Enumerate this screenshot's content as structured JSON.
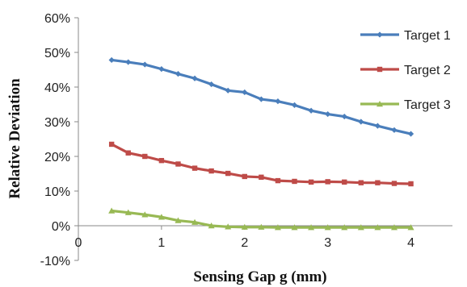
{
  "chart_data": {
    "type": "line",
    "title": "",
    "xlabel": "Sensing Gap g (mm)",
    "ylabel": "Relative Deviation",
    "xlim": [
      0,
      4.5
    ],
    "ylim": [
      -10,
      60
    ],
    "x_ticks": [
      0,
      1,
      2,
      3,
      4
    ],
    "x_tick_labels": [
      "0",
      "1",
      "2",
      "3",
      "4"
    ],
    "y_ticks": [
      -10,
      0,
      10,
      20,
      30,
      40,
      50,
      60
    ],
    "y_tick_labels": [
      "-10%",
      "0%",
      "10%",
      "20%",
      "30%",
      "40%",
      "50%",
      "60%"
    ],
    "grid": false,
    "legend_position": "right",
    "x": [
      0.4,
      0.6,
      0.8,
      1.0,
      1.2,
      1.4,
      1.6,
      1.8,
      2.0,
      2.2,
      2.4,
      2.6,
      2.8,
      3.0,
      3.2,
      3.4,
      3.6,
      3.8,
      4.0
    ],
    "series": [
      {
        "name": "Target 1",
        "color": "#4a7ebb",
        "marker": "diamond",
        "values": [
          47.8,
          47.2,
          46.5,
          45.2,
          43.8,
          42.5,
          40.8,
          39.0,
          38.5,
          36.5,
          35.9,
          34.8,
          33.2,
          32.2,
          31.5,
          30.0,
          28.8,
          27.6,
          26.5
        ]
      },
      {
        "name": "Target 2",
        "color": "#be4b48",
        "marker": "square",
        "values": [
          23.5,
          21.0,
          20.0,
          18.8,
          17.8,
          16.6,
          15.8,
          15.1,
          14.2,
          14.0,
          13.0,
          12.8,
          12.6,
          12.7,
          12.6,
          12.4,
          12.4,
          12.2,
          12.1
        ]
      },
      {
        "name": "Target 3",
        "color": "#98b954",
        "marker": "triangle",
        "values": [
          4.3,
          3.8,
          3.2,
          2.5,
          1.5,
          1.0,
          0.0,
          -0.3,
          -0.4,
          -0.4,
          -0.5,
          -0.5,
          -0.5,
          -0.5,
          -0.5,
          -0.5,
          -0.5,
          -0.5,
          -0.5
        ]
      }
    ]
  }
}
